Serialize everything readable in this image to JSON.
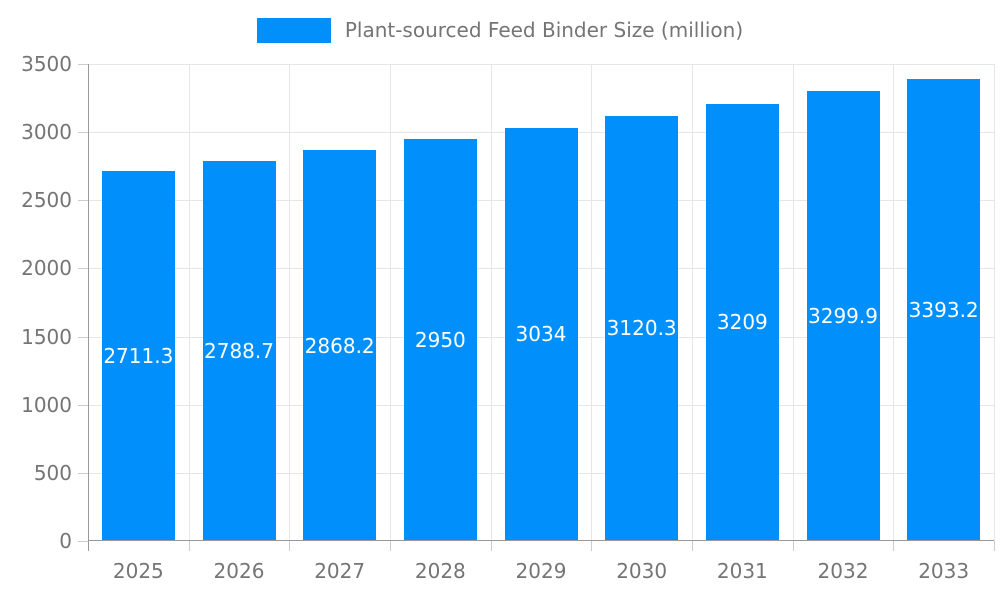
{
  "chart_data": {
    "type": "bar",
    "title": "Plant-sourced Feed Binder Size (million)",
    "categories": [
      "2025",
      "2026",
      "2027",
      "2028",
      "2029",
      "2030",
      "2031",
      "2032",
      "2033"
    ],
    "series": [
      {
        "name": "Plant-sourced Feed Binder Size (million)",
        "values": [
          2711.3,
          2788.7,
          2868.2,
          2950,
          3034,
          3120.3,
          3209,
          3299.9,
          3393.2
        ]
      }
    ],
    "bar_value_labels": [
      "2711.3",
      "2788.7",
      "2868.2",
      "2950",
      "3034",
      "3120.3",
      "3209",
      "3299.9",
      "3393.2"
    ],
    "xlabel": "",
    "ylabel": "",
    "ylim": [
      0,
      3500
    ],
    "ytick_step": 500,
    "ytick_labels": [
      "0",
      "500",
      "1000",
      "1500",
      "2000",
      "2500",
      "3000",
      "3500"
    ],
    "grid": "both",
    "legend_position": "top",
    "colors": {
      "bar": "#008FFB",
      "bar_label_text": "#FFFFFF",
      "axis_text": "#757575",
      "gridline": "#E6E6E6",
      "axis_line": "#999999",
      "tick": "#CCCCCC",
      "background": "#FFFFFF"
    }
  }
}
